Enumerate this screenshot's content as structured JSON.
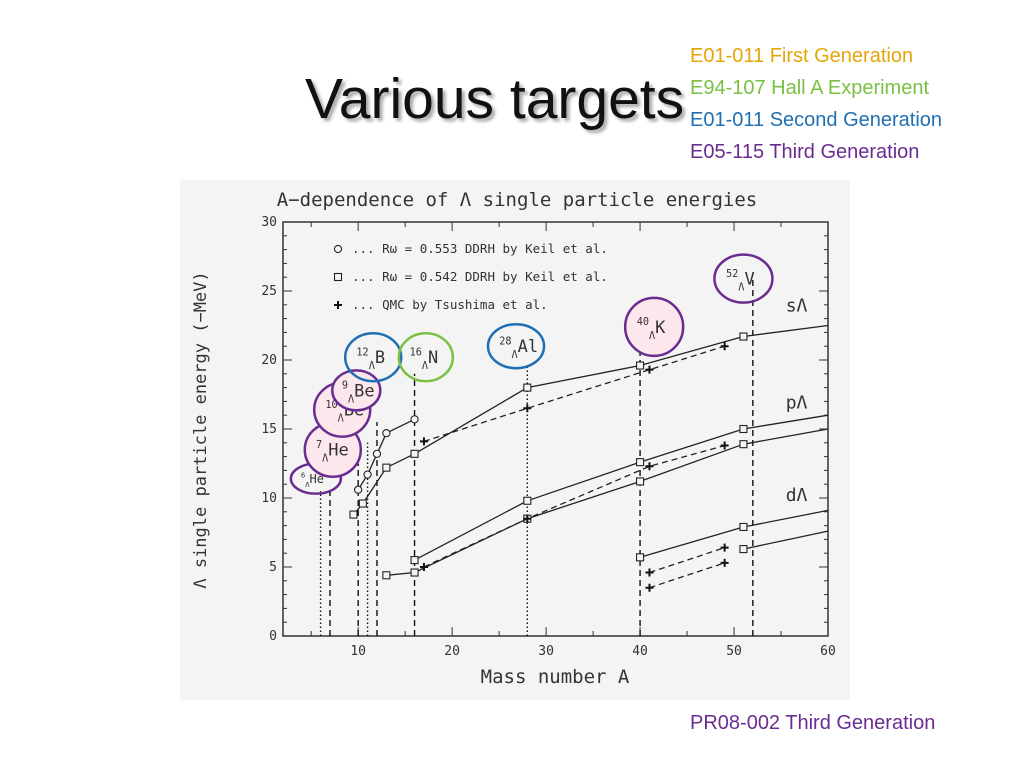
{
  "slide": {
    "title": "Various targets",
    "legend_items": [
      {
        "label": "E01-011 First Generation",
        "color": "#e5a50a"
      },
      {
        "label": "E94-107 Hall A Experiment",
        "color": "#7ac143"
      },
      {
        "label": "E01-011 Second Generation",
        "color": "#1f6fb2"
      },
      {
        "label": "E05-115 Third Generation",
        "color": "#6a2c91"
      }
    ],
    "footer": {
      "label": "PR08-002 Third Generation",
      "color": "#6a2c91"
    }
  },
  "chart_data": {
    "type": "line",
    "title": "A−dependence of Λ single particle energies",
    "xlabel": "Mass number A",
    "ylabel": "Λ single particle energy (−MeV)",
    "xlim": [
      2,
      60
    ],
    "ylim": [
      0,
      30
    ],
    "x_ticks": [
      10,
      20,
      30,
      40,
      50,
      60
    ],
    "y_ticks": [
      0,
      5,
      10,
      15,
      20,
      25,
      30
    ],
    "legend": {
      "position": "top-left",
      "entries": [
        {
          "marker": "circle",
          "text": "... Rω = 0.553 DDRH by Keil et al."
        },
        {
          "marker": "square",
          "text": "... Rω = 0.542 DDRH by Keil et al."
        },
        {
          "marker": "plus",
          "text": "...  QMC       by Tsushima  et al."
        }
      ]
    },
    "series": [
      {
        "marker": "circle",
        "style": "solid",
        "points": [
          [
            10,
            10.6
          ],
          [
            11,
            11.7
          ],
          [
            12,
            13.2
          ],
          [
            13,
            14.7
          ],
          [
            16,
            15.7
          ]
        ]
      },
      {
        "marker": "square",
        "style": "solid",
        "points": [
          [
            9.5,
            8.8
          ],
          [
            10.5,
            9.6
          ],
          [
            13,
            12.2
          ],
          [
            16,
            13.2
          ],
          [
            28,
            18.0
          ],
          [
            40,
            19.6
          ],
          [
            51,
            21.7
          ],
          [
            60,
            22.5
          ]
        ]
      },
      {
        "marker": "plus",
        "style": "dashed",
        "points": [
          [
            17,
            14.1
          ],
          [
            28,
            16.5
          ],
          [
            41,
            19.3
          ],
          [
            49,
            21.0
          ]
        ]
      },
      {
        "marker": "square",
        "style": "solid",
        "points": [
          [
            16,
            5.5
          ],
          [
            28,
            9.8
          ],
          [
            40,
            12.6
          ],
          [
            51,
            15.0
          ],
          [
            60,
            16.0
          ]
        ]
      },
      {
        "marker": "square",
        "style": "solid",
        "points": [
          [
            13,
            4.4
          ],
          [
            16,
            4.6
          ],
          [
            28,
            8.5
          ],
          [
            40,
            11.2
          ],
          [
            51,
            13.9
          ],
          [
            60,
            15.0
          ]
        ]
      },
      {
        "marker": "plus",
        "style": "dashed",
        "points": [
          [
            17,
            5.0
          ],
          [
            28,
            8.5
          ],
          [
            41,
            12.3
          ],
          [
            49,
            13.8
          ]
        ]
      },
      {
        "marker": "square",
        "style": "solid",
        "points": [
          [
            40,
            5.7
          ],
          [
            51,
            7.9
          ],
          [
            60,
            9.1
          ]
        ]
      },
      {
        "marker": "square",
        "style": "solid",
        "points": [
          [
            51,
            6.3
          ],
          [
            60,
            7.6
          ]
        ]
      },
      {
        "marker": "plus",
        "style": "dashed",
        "points": [
          [
            41,
            4.6
          ],
          [
            49,
            6.4
          ]
        ]
      },
      {
        "marker": "plus",
        "style": "dashed",
        "points": [
          [
            41,
            3.5
          ],
          [
            49,
            5.3
          ]
        ]
      }
    ],
    "vertical_markers": [
      {
        "x": 6,
        "top": 10.5,
        "style": "dotted"
      },
      {
        "x": 7,
        "top": 10.5,
        "style": "dashed"
      },
      {
        "x": 10,
        "top": 12.5,
        "style": "dashed"
      },
      {
        "x": 11,
        "top": 14.0,
        "style": "dotted"
      },
      {
        "x": 12,
        "top": 15.5,
        "style": "dashed"
      },
      {
        "x": 16,
        "top": 19.0,
        "style": "dashed"
      },
      {
        "x": 28,
        "top": 19.5,
        "style": "dotted"
      },
      {
        "x": 40,
        "top": 22.5,
        "style": "dashed"
      },
      {
        "x": 52,
        "top": 26.0,
        "style": "dashed"
      }
    ],
    "shell_labels": [
      {
        "text": "sΛ",
        "x": 55.5,
        "y": 23.5
      },
      {
        "text": "pΛ",
        "x": 55.5,
        "y": 16.5
      },
      {
        "text": "dΛ",
        "x": 55.5,
        "y": 9.8
      }
    ],
    "nucleus_labels": [
      {
        "mass": "6",
        "sym": "He",
        "x": 5.5,
        "y": 11.4,
        "rx": 25,
        "ry": 15,
        "ring": "#6a2c91",
        "fill": "none"
      },
      {
        "mass": "7",
        "sym": "He",
        "x": 7.3,
        "y": 13.5,
        "rx": 28,
        "ry": 27,
        "ring": "#6a2c91",
        "fill": "#fce8ec"
      },
      {
        "mass": "10",
        "sym": "Be",
        "x": 8.3,
        "y": 16.4,
        "rx": 28,
        "ry": 27,
        "ring": "#6a2c91",
        "fill": "#fce8ec"
      },
      {
        "mass": "9",
        "sym": "Be",
        "x": 9.8,
        "y": 17.8,
        "rx": 24,
        "ry": 20,
        "ring": "#6a2c91",
        "fill": "#fce8ec"
      },
      {
        "mass": "12",
        "sym": "B",
        "x": 11.6,
        "y": 20.2,
        "rx": 28,
        "ry": 24,
        "ring": "#1f6fb2",
        "fill": "none"
      },
      {
        "mass": "16",
        "sym": "N",
        "x": 17.2,
        "y": 20.2,
        "rx": 27,
        "ry": 24,
        "ring": "#7ac143",
        "fill": "none"
      },
      {
        "mass": "28",
        "sym": "Al",
        "x": 26.8,
        "y": 21.0,
        "rx": 28,
        "ry": 22,
        "ring": "#1f6fb2",
        "fill": "none"
      },
      {
        "mass": "40",
        "sym": "K",
        "x": 41.5,
        "y": 22.4,
        "rx": 29,
        "ry": 29,
        "ring": "#6a2c91",
        "fill": "#fce8ec"
      },
      {
        "mass": "52",
        "sym": "V",
        "x": 51.0,
        "y": 25.9,
        "rx": 29,
        "ry": 24,
        "ring": "#6a2c91",
        "fill": "none"
      }
    ]
  }
}
